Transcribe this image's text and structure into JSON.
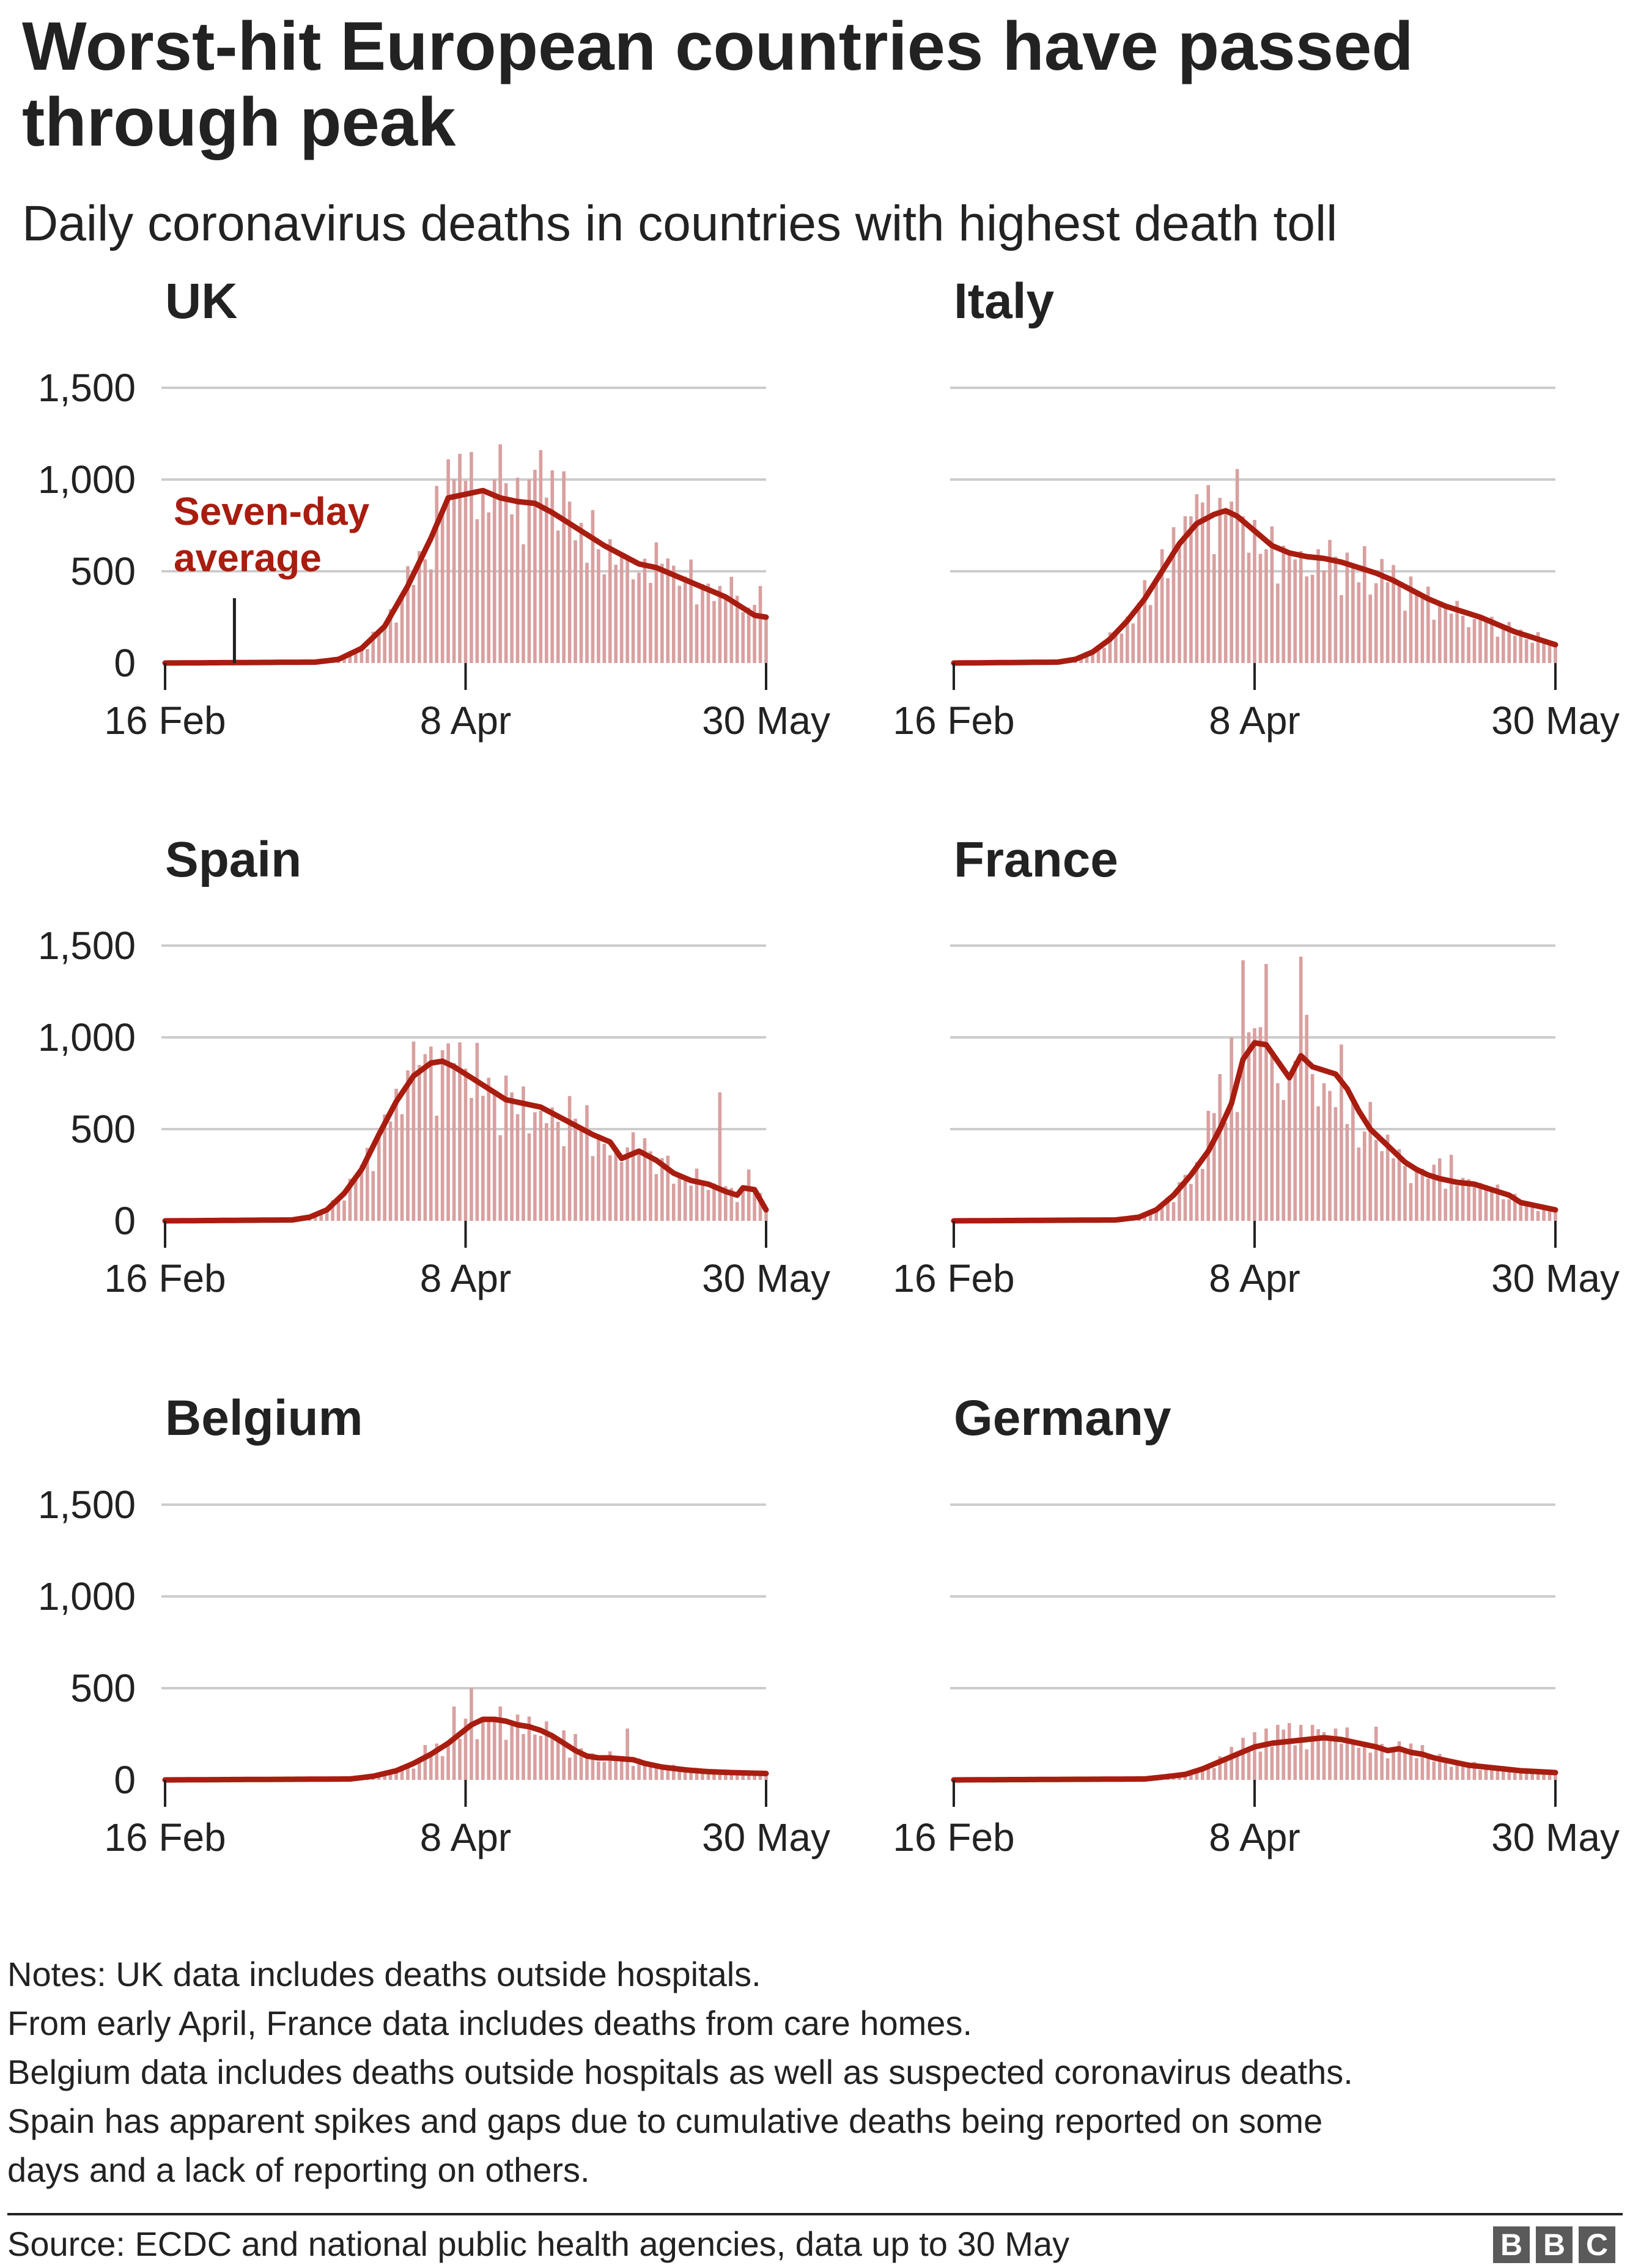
{
  "title": "Worst-hit European countries have passed through peak",
  "subtitle": "Daily coronavirus deaths in countries with highest death toll",
  "notes": [
    "Notes: UK data includes deaths outside hospitals.",
    "From early April, France data includes deaths from care homes.",
    "Belgium data includes deaths outside hospitals as well as suspected coronavirus deaths.",
    "Spain has apparent spikes and gaps due to cumulative deaths being reported on some",
    "days and a lack of reporting on others."
  ],
  "source": "Source: ECDC and national public health agencies, data up to 30 May",
  "logo": [
    "B",
    "B",
    "C"
  ],
  "colors": {
    "bar": "#d9a0a0",
    "line": "#a81d10",
    "grid": "#cccccc",
    "text": "#222222",
    "annotation": "#a81d10"
  },
  "chart_data": {
    "type": "bar",
    "title": "Worst-hit European countries have passed through peak",
    "subtitle": "Daily coronavirus deaths in countries with highest death toll",
    "x_start": "16 Feb",
    "x_end": "30 May",
    "num_days": 105,
    "x_ticks": [
      {
        "day": 0,
        "label": "16 Feb"
      },
      {
        "day": 52,
        "label": "8 Apr"
      },
      {
        "day": 104,
        "label": "30 May"
      }
    ],
    "ylim": [
      0,
      1500
    ],
    "y_ticks": [
      {
        "value": 0,
        "label": "0"
      },
      {
        "value": 500,
        "label": "500"
      },
      {
        "value": 1000,
        "label": "1,000"
      },
      {
        "value": 1500,
        "label": "1,500"
      }
    ],
    "annotation": {
      "panel": "UK",
      "text_lines": [
        "Seven-day",
        "average"
      ],
      "day": 12
    },
    "series_types": {
      "bars": "Daily deaths",
      "line": "Seven-day average"
    },
    "panels": [
      {
        "name": "UK",
        "avg_anchors": [
          [
            0,
            0
          ],
          [
            26,
            5
          ],
          [
            30,
            20
          ],
          [
            34,
            80
          ],
          [
            38,
            200
          ],
          [
            42,
            420
          ],
          [
            46,
            680
          ],
          [
            49,
            900
          ],
          [
            52,
            920
          ],
          [
            55,
            940
          ],
          [
            58,
            900
          ],
          [
            61,
            880
          ],
          [
            64,
            870
          ],
          [
            67,
            820
          ],
          [
            70,
            760
          ],
          [
            73,
            700
          ],
          [
            76,
            640
          ],
          [
            79,
            590
          ],
          [
            82,
            540
          ],
          [
            85,
            520
          ],
          [
            88,
            480
          ],
          [
            91,
            440
          ],
          [
            94,
            400
          ],
          [
            97,
            360
          ],
          [
            100,
            300
          ],
          [
            102,
            260
          ],
          [
            104,
            250
          ]
        ],
        "spikes": [
          [
            49,
            1110
          ],
          [
            51,
            1140
          ],
          [
            53,
            1150
          ],
          [
            55,
            930
          ],
          [
            57,
            1000
          ],
          [
            59,
            980
          ],
          [
            61,
            1010
          ],
          [
            63,
            1000
          ],
          [
            65,
            1160
          ],
          [
            67,
            1050
          ],
          [
            70,
            880
          ],
          [
            75,
            620
          ],
          [
            80,
            580
          ],
          [
            87,
            570
          ],
          [
            93,
            430
          ],
          [
            96,
            420
          ],
          [
            98,
            470
          ],
          [
            103,
            420
          ]
        ]
      },
      {
        "name": "Italy",
        "avg_anchors": [
          [
            0,
            0
          ],
          [
            18,
            5
          ],
          [
            21,
            20
          ],
          [
            24,
            60
          ],
          [
            27,
            130
          ],
          [
            30,
            230
          ],
          [
            33,
            350
          ],
          [
            36,
            500
          ],
          [
            39,
            650
          ],
          [
            42,
            760
          ],
          [
            45,
            810
          ],
          [
            47,
            830
          ],
          [
            49,
            800
          ],
          [
            52,
            720
          ],
          [
            55,
            640
          ],
          [
            58,
            600
          ],
          [
            61,
            580
          ],
          [
            64,
            570
          ],
          [
            67,
            550
          ],
          [
            70,
            520
          ],
          [
            73,
            490
          ],
          [
            76,
            450
          ],
          [
            79,
            400
          ],
          [
            82,
            350
          ],
          [
            85,
            310
          ],
          [
            88,
            280
          ],
          [
            91,
            250
          ],
          [
            94,
            210
          ],
          [
            97,
            170
          ],
          [
            100,
            140
          ],
          [
            104,
            100
          ]
        ],
        "spikes": [
          [
            36,
            620
          ],
          [
            38,
            740
          ],
          [
            40,
            800
          ],
          [
            42,
            920
          ],
          [
            44,
            970
          ],
          [
            46,
            900
          ],
          [
            48,
            880
          ],
          [
            50,
            800
          ],
          [
            52,
            780
          ],
          [
            54,
            620
          ],
          [
            57,
            640
          ],
          [
            60,
            610
          ],
          [
            63,
            620
          ],
          [
            66,
            580
          ],
          [
            70,
            440
          ],
          [
            75,
            440
          ],
          [
            80,
            380
          ],
          [
            85,
            300
          ],
          [
            90,
            240
          ]
        ]
      },
      {
        "name": "Spain",
        "avg_anchors": [
          [
            0,
            0
          ],
          [
            22,
            5
          ],
          [
            25,
            20
          ],
          [
            28,
            60
          ],
          [
            31,
            150
          ],
          [
            34,
            280
          ],
          [
            37,
            470
          ],
          [
            40,
            650
          ],
          [
            43,
            790
          ],
          [
            46,
            860
          ],
          [
            48,
            870
          ],
          [
            50,
            840
          ],
          [
            53,
            780
          ],
          [
            56,
            720
          ],
          [
            59,
            660
          ],
          [
            62,
            640
          ],
          [
            65,
            620
          ],
          [
            68,
            570
          ],
          [
            71,
            520
          ],
          [
            74,
            470
          ],
          [
            77,
            430
          ],
          [
            79,
            340
          ],
          [
            82,
            380
          ],
          [
            85,
            330
          ],
          [
            88,
            260
          ],
          [
            91,
            220
          ],
          [
            94,
            200
          ],
          [
            97,
            160
          ],
          [
            99,
            140
          ],
          [
            100,
            180
          ],
          [
            102,
            170
          ],
          [
            104,
            60
          ]
        ],
        "spikes": [
          [
            38,
            580
          ],
          [
            40,
            720
          ],
          [
            42,
            820
          ],
          [
            44,
            850
          ],
          [
            46,
            950
          ],
          [
            48,
            930
          ],
          [
            50,
            860
          ],
          [
            52,
            830
          ],
          [
            56,
            780
          ],
          [
            60,
            700
          ],
          [
            65,
            600
          ],
          [
            68,
            540
          ],
          [
            72,
            510
          ],
          [
            73,
            630
          ],
          [
            76,
            420
          ],
          [
            80,
            400
          ],
          [
            83,
            450
          ],
          [
            96,
            700
          ],
          [
            101,
            280
          ]
        ]
      },
      {
        "name": "France",
        "avg_anchors": [
          [
            0,
            0
          ],
          [
            28,
            5
          ],
          [
            32,
            20
          ],
          [
            35,
            60
          ],
          [
            38,
            140
          ],
          [
            41,
            250
          ],
          [
            44,
            380
          ],
          [
            46,
            500
          ],
          [
            48,
            640
          ],
          [
            50,
            880
          ],
          [
            52,
            970
          ],
          [
            54,
            960
          ],
          [
            56,
            870
          ],
          [
            58,
            780
          ],
          [
            60,
            900
          ],
          [
            62,
            840
          ],
          [
            64,
            820
          ],
          [
            66,
            800
          ],
          [
            68,
            720
          ],
          [
            70,
            600
          ],
          [
            72,
            500
          ],
          [
            74,
            440
          ],
          [
            76,
            380
          ],
          [
            78,
            320
          ],
          [
            80,
            280
          ],
          [
            82,
            250
          ],
          [
            84,
            230
          ],
          [
            87,
            210
          ],
          [
            90,
            200
          ],
          [
            93,
            170
          ],
          [
            96,
            140
          ],
          [
            98,
            100
          ],
          [
            101,
            80
          ],
          [
            104,
            60
          ]
        ],
        "spikes": [
          [
            44,
            600
          ],
          [
            46,
            800
          ],
          [
            48,
            1000
          ],
          [
            50,
            1420
          ],
          [
            52,
            1050
          ],
          [
            54,
            1400
          ],
          [
            56,
            750
          ],
          [
            58,
            800
          ],
          [
            60,
            1440
          ],
          [
            62,
            800
          ],
          [
            64,
            750
          ],
          [
            66,
            620
          ],
          [
            70,
            400
          ],
          [
            74,
            380
          ],
          [
            78,
            300
          ],
          [
            84,
            340
          ],
          [
            86,
            360
          ],
          [
            90,
            210
          ]
        ]
      },
      {
        "name": "Belgium",
        "avg_anchors": [
          [
            0,
            0
          ],
          [
            32,
            5
          ],
          [
            36,
            20
          ],
          [
            40,
            50
          ],
          [
            43,
            90
          ],
          [
            46,
            140
          ],
          [
            49,
            200
          ],
          [
            51,
            250
          ],
          [
            53,
            300
          ],
          [
            55,
            330
          ],
          [
            57,
            330
          ],
          [
            59,
            320
          ],
          [
            61,
            300
          ],
          [
            63,
            290
          ],
          [
            65,
            270
          ],
          [
            67,
            240
          ],
          [
            69,
            200
          ],
          [
            71,
            160
          ],
          [
            73,
            130
          ],
          [
            75,
            120
          ],
          [
            77,
            120
          ],
          [
            79,
            115
          ],
          [
            81,
            110
          ],
          [
            83,
            90
          ],
          [
            86,
            70
          ],
          [
            90,
            55
          ],
          [
            94,
            45
          ],
          [
            98,
            40
          ],
          [
            104,
            35
          ]
        ],
        "spikes": [
          [
            45,
            190
          ],
          [
            50,
            400
          ],
          [
            53,
            500
          ],
          [
            55,
            320
          ],
          [
            58,
            400
          ],
          [
            60,
            300
          ],
          [
            62,
            250
          ],
          [
            65,
            240
          ],
          [
            69,
            270
          ],
          [
            71,
            250
          ],
          [
            75,
            100
          ],
          [
            80,
            280
          ],
          [
            85,
            90
          ]
        ]
      },
      {
        "name": "Germany",
        "avg_anchors": [
          [
            0,
            0
          ],
          [
            33,
            5
          ],
          [
            36,
            15
          ],
          [
            40,
            30
          ],
          [
            43,
            60
          ],
          [
            46,
            100
          ],
          [
            49,
            140
          ],
          [
            52,
            180
          ],
          [
            55,
            200
          ],
          [
            58,
            210
          ],
          [
            61,
            220
          ],
          [
            64,
            230
          ],
          [
            67,
            220
          ],
          [
            70,
            200
          ],
          [
            73,
            180
          ],
          [
            75,
            160
          ],
          [
            77,
            170
          ],
          [
            79,
            150
          ],
          [
            81,
            140
          ],
          [
            83,
            120
          ],
          [
            86,
            100
          ],
          [
            89,
            80
          ],
          [
            92,
            70
          ],
          [
            95,
            60
          ],
          [
            98,
            50
          ],
          [
            101,
            45
          ],
          [
            104,
            40
          ]
        ],
        "spikes": [
          [
            48,
            180
          ],
          [
            50,
            230
          ],
          [
            52,
            260
          ],
          [
            54,
            280
          ],
          [
            56,
            300
          ],
          [
            58,
            310
          ],
          [
            60,
            300
          ],
          [
            62,
            300
          ],
          [
            64,
            260
          ],
          [
            66,
            280
          ],
          [
            69,
            220
          ],
          [
            73,
            290
          ],
          [
            77,
            210
          ],
          [
            81,
            190
          ],
          [
            85,
            120
          ]
        ]
      }
    ]
  }
}
